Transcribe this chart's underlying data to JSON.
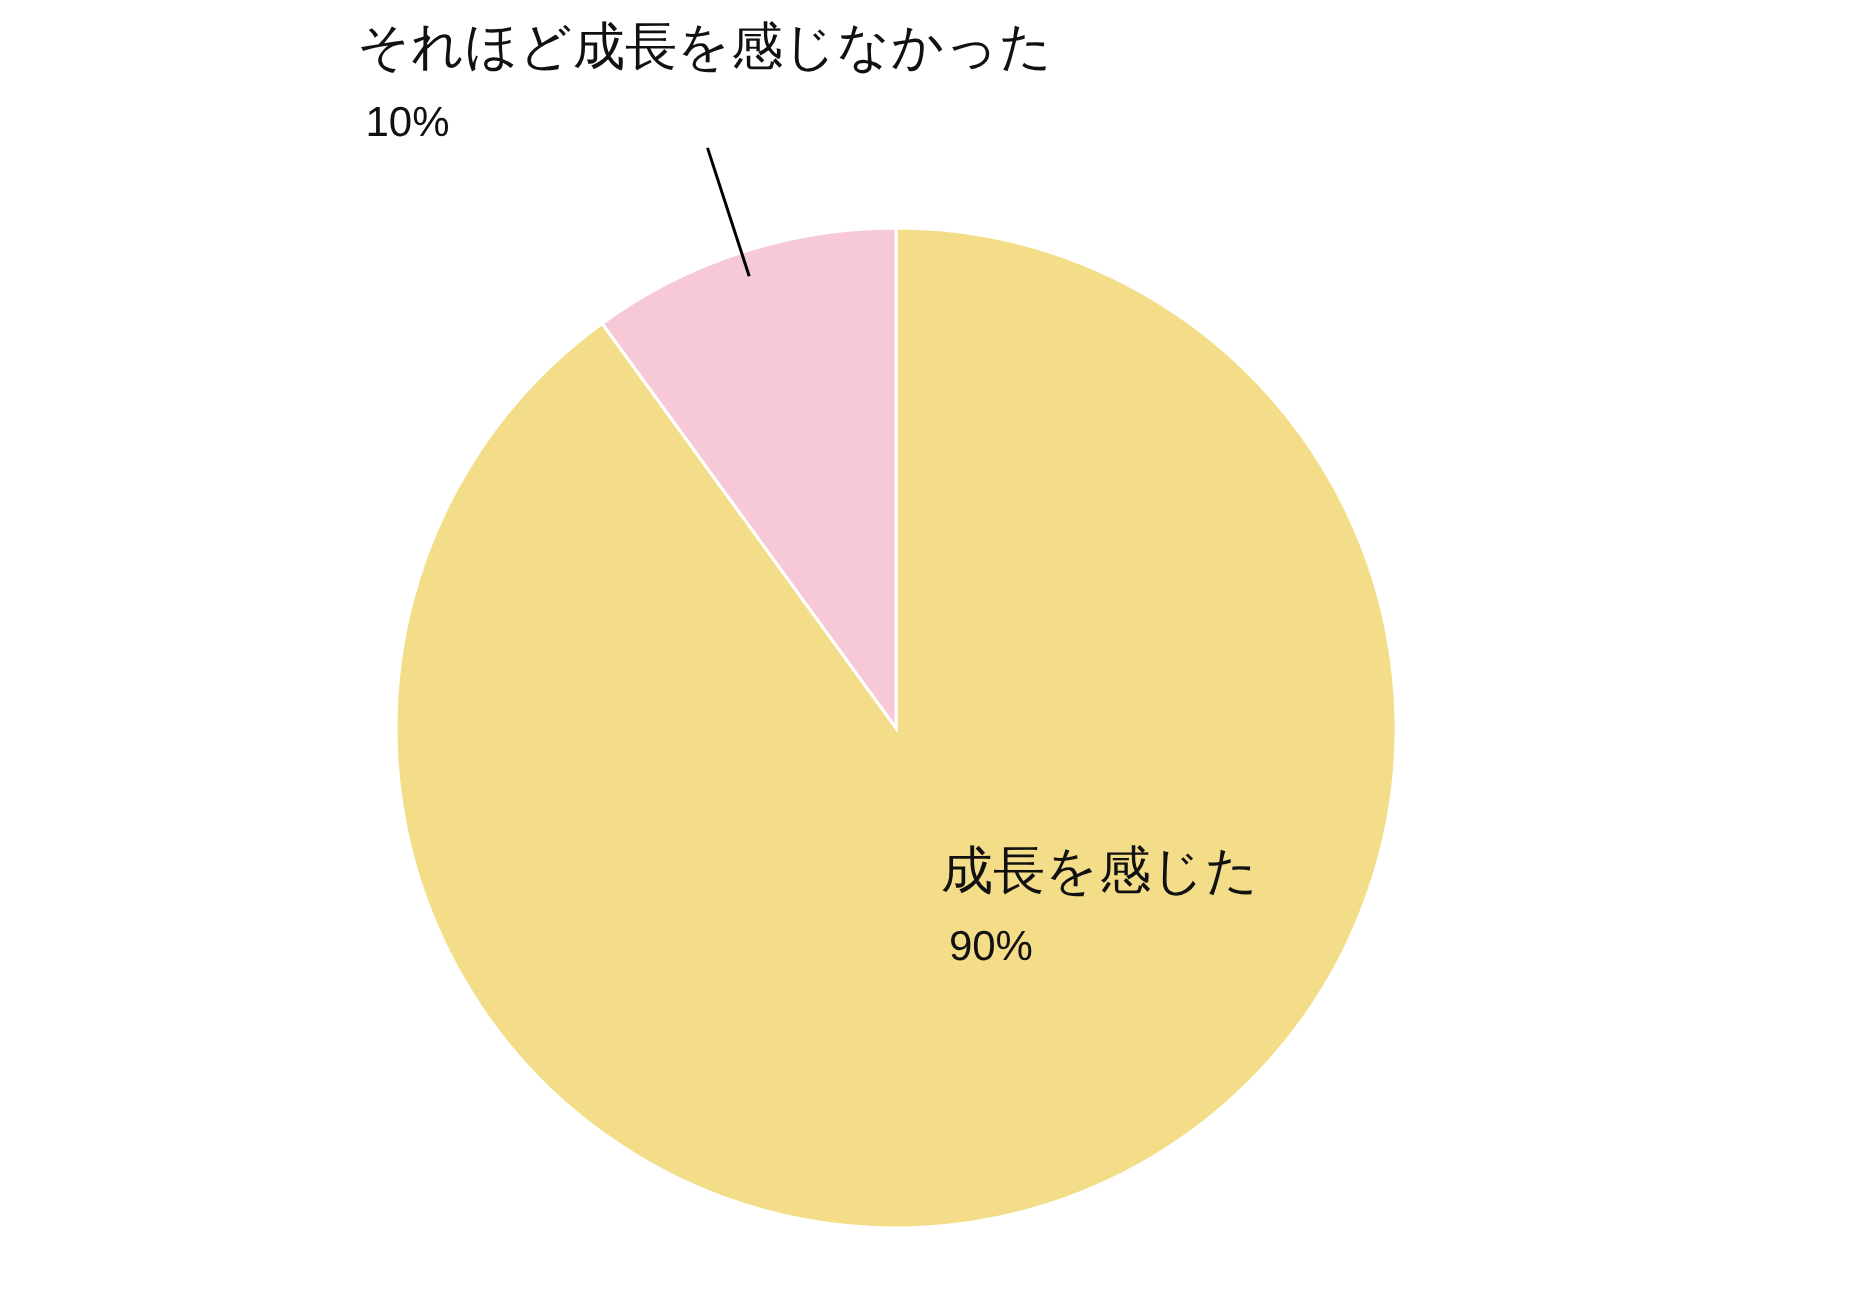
{
  "chart_data": {
    "type": "pie",
    "categories": [
      "成長を感じた",
      "それほど成長を感じなかった"
    ],
    "values": [
      90,
      10
    ],
    "colors": [
      "#f4dd88",
      "#f7c8d6"
    ],
    "value_labels": [
      "90%",
      "10%"
    ]
  }
}
